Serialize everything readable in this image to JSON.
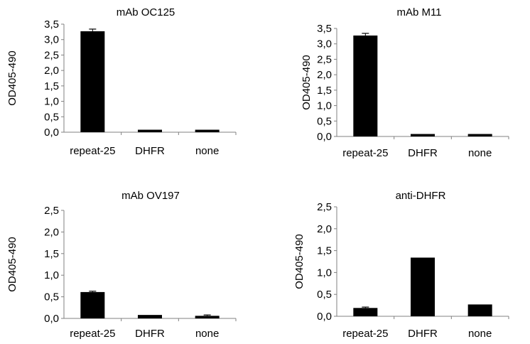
{
  "chart_data": [
    {
      "type": "bar",
      "title": "mAb OC125",
      "ylabel": "OD405-490",
      "xlabel": "",
      "categories": [
        "repeat-25",
        "DHFR",
        "none"
      ],
      "values": [
        3.27,
        0.08,
        0.08
      ],
      "errors": [
        0.07,
        0,
        0
      ],
      "ylim": [
        0,
        3.5
      ],
      "yticks": [
        "0,0",
        "0,5",
        "1,0",
        "1,5",
        "2,0",
        "2,5",
        "3,0",
        "3,5"
      ],
      "grid": false,
      "bar_color": "#000000"
    },
    {
      "type": "bar",
      "title": "mAb M11",
      "ylabel": "OD405-490",
      "xlabel": "",
      "categories": [
        "repeat-25",
        "DHFR",
        "none"
      ],
      "values": [
        3.27,
        0.08,
        0.08
      ],
      "errors": [
        0.07,
        0,
        0
      ],
      "ylim": [
        0,
        3.5
      ],
      "yticks": [
        "0,0",
        "0,5",
        "1,0",
        "1,5",
        "2,0",
        "2,5",
        "3,0",
        "3,5"
      ],
      "grid": false,
      "bar_color": "#000000"
    },
    {
      "type": "bar",
      "title": "mAb OV197",
      "ylabel": "OD405-490",
      "xlabel": "",
      "categories": [
        "repeat-25",
        "DHFR",
        "none"
      ],
      "values": [
        0.61,
        0.08,
        0.06
      ],
      "errors": [
        0.02,
        0,
        0.02
      ],
      "ylim": [
        0,
        2.5
      ],
      "yticks": [
        "0,0",
        "0,5",
        "1,0",
        "1,5",
        "2,0",
        "2,5"
      ],
      "grid": false,
      "bar_color": "#000000"
    },
    {
      "type": "bar",
      "title": "anti-DHFR",
      "ylabel": "OD405-490",
      "xlabel": "",
      "categories": [
        "repeat-25",
        "DHFR",
        "none"
      ],
      "values": [
        0.19,
        1.34,
        0.27
      ],
      "errors": [
        0.02,
        0,
        0
      ],
      "ylim": [
        0,
        2.5
      ],
      "yticks": [
        "0,0",
        "0,5",
        "1,0",
        "1,5",
        "2,0",
        "2,5"
      ],
      "grid": false,
      "bar_color": "#000000"
    }
  ]
}
